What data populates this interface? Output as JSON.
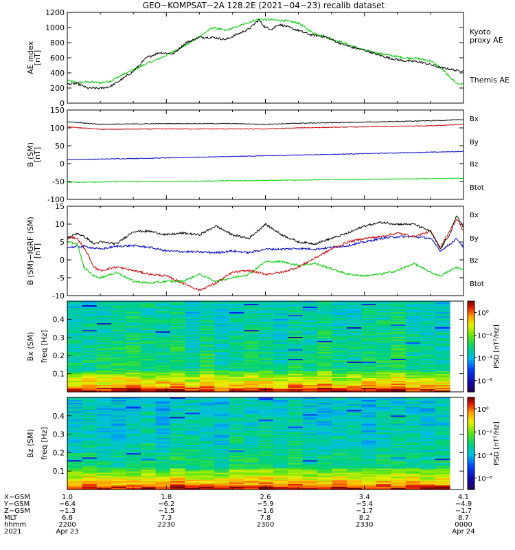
{
  "title": "GEO−KOMPSAT−2A 128.2E (2021−04−23) recalib dataset",
  "chart_data": [
    {
      "type": "line",
      "panel": "ae",
      "ylabel_lines": [
        "AE index",
        "[nT]"
      ],
      "ylim": [
        0,
        1200
      ],
      "yticks": [
        0,
        200,
        400,
        600,
        800,
        1000,
        1200
      ],
      "xlim_minutes": [
        0,
        120
      ],
      "legend_placement": "right",
      "series": [
        {
          "name": "Kyoto proxy AE",
          "label_lines": [
            "Kyoto",
            "proxy AE"
          ],
          "color": "#00cc00",
          "x": [
            0,
            3,
            6,
            10,
            13,
            16,
            20,
            24,
            28,
            32,
            36,
            40,
            44,
            48,
            52,
            55,
            58,
            62,
            66,
            70,
            74,
            78,
            82,
            86,
            90,
            94,
            98,
            102,
            106,
            110,
            113,
            116,
            118,
            120
          ],
          "y": [
            300,
            270,
            280,
            270,
            290,
            360,
            440,
            520,
            590,
            680,
            770,
            880,
            1000,
            960,
            1020,
            1070,
            1110,
            1100,
            1090,
            1060,
            940,
            880,
            820,
            760,
            700,
            660,
            630,
            600,
            590,
            560,
            470,
            340,
            260,
            250
          ]
        },
        {
          "name": "Themis AE",
          "label_lines": [
            "Themis AE"
          ],
          "color": "#000000",
          "x": [
            0,
            3,
            6,
            10,
            13,
            16,
            20,
            24,
            28,
            32,
            36,
            40,
            44,
            48,
            52,
            55,
            58,
            60,
            62,
            64,
            66,
            70,
            74,
            78,
            82,
            86,
            90,
            94,
            98,
            102,
            106,
            110,
            113,
            116,
            118,
            120
          ],
          "y": [
            250,
            260,
            200,
            195,
            220,
            300,
            420,
            600,
            670,
            650,
            800,
            870,
            870,
            840,
            920,
            980,
            1100,
            1000,
            980,
            1040,
            1020,
            960,
            900,
            880,
            800,
            740,
            700,
            640,
            590,
            560,
            550,
            510,
            470,
            450,
            430,
            430
          ]
        }
      ]
    },
    {
      "type": "line",
      "panel": "b_sm",
      "ylabel_lines": [
        "B (SM)",
        "[nT]"
      ],
      "ylim": [
        -100,
        150
      ],
      "yticks": [
        -100,
        -50,
        0,
        50,
        100,
        150
      ],
      "xlim_minutes": [
        0,
        120
      ],
      "legend_placement": "right",
      "series": [
        {
          "name": "Bx",
          "color": "#0000cc",
          "x": [
            0,
            30,
            60,
            90,
            120
          ],
          "y": [
            11,
            16,
            22,
            28,
            34
          ]
        },
        {
          "name": "By",
          "color": "#00cc00",
          "x": [
            0,
            30,
            60,
            90,
            120
          ],
          "y": [
            -52,
            -50,
            -47,
            -44,
            -41
          ]
        },
        {
          "name": "Bz",
          "color": "#cc0000",
          "x": [
            0,
            10,
            30,
            50,
            60,
            70,
            90,
            110,
            120
          ],
          "y": [
            103,
            96,
            97,
            97,
            97,
            100,
            103,
            106,
            110
          ]
        },
        {
          "name": "Btot",
          "color": "#000000",
          "x": [
            0,
            10,
            30,
            50,
            60,
            70,
            90,
            110,
            120
          ],
          "y": [
            117,
            110,
            112,
            112,
            110,
            113,
            116,
            120,
            123
          ]
        }
      ]
    },
    {
      "type": "line",
      "panel": "b_igrf",
      "ylabel_lines": [
        "B (SM)−IGRF (SM)",
        "[nT]"
      ],
      "ylim": [
        -10,
        15
      ],
      "yticks": [
        -10,
        -5,
        0,
        5,
        10,
        15
      ],
      "xlim_minutes": [
        0,
        120
      ],
      "legend_placement": "right",
      "series": [
        {
          "name": "Bx",
          "color": "#0000cc",
          "x": [
            0,
            5,
            10,
            15,
            20,
            25,
            30,
            35,
            40,
            45,
            50,
            55,
            60,
            65,
            70,
            75,
            80,
            85,
            90,
            95,
            100,
            105,
            110,
            113,
            116,
            118,
            120
          ],
          "y": [
            3.5,
            3.8,
            3.0,
            3.8,
            4.0,
            3.5,
            2.5,
            2.3,
            2.2,
            2.0,
            2.5,
            2.0,
            3.0,
            3.0,
            3.2,
            3.0,
            3.5,
            4.0,
            5.0,
            6.0,
            6.5,
            6.5,
            6.0,
            2.5,
            4.5,
            6.0,
            3.5
          ]
        },
        {
          "name": "By",
          "color": "#00cc00",
          "x": [
            0,
            3,
            5,
            8,
            10,
            15,
            20,
            25,
            30,
            35,
            40,
            45,
            50,
            55,
            60,
            65,
            70,
            75,
            80,
            85,
            90,
            95,
            100,
            105,
            110,
            113,
            116,
            118,
            120
          ],
          "y": [
            5.0,
            4.5,
            -2.0,
            -4.5,
            -5.0,
            -3.5,
            -6.0,
            -6.5,
            -6.0,
            -6.0,
            -4.0,
            -6.0,
            -5.0,
            -4.0,
            -0.5,
            -0.5,
            -1.5,
            -1.0,
            -2.5,
            -4.0,
            -4.5,
            -4.0,
            -3.0,
            -1.0,
            -3.5,
            -4.5,
            -3.0,
            -2.0,
            -3.0
          ]
        },
        {
          "name": "Bz",
          "color": "#cc0000",
          "x": [
            0,
            3,
            6,
            8,
            10,
            15,
            20,
            25,
            30,
            35,
            40,
            45,
            50,
            55,
            60,
            65,
            70,
            75,
            80,
            85,
            90,
            95,
            100,
            105,
            110,
            113,
            116,
            118,
            120
          ],
          "y": [
            6.5,
            6.0,
            2.0,
            -2.0,
            -3.0,
            -2.0,
            -3.0,
            -4.0,
            -4.5,
            -6.5,
            -8.5,
            -6.5,
            -3.5,
            -3.0,
            -4.0,
            -3.5,
            -2.0,
            0.5,
            3.0,
            5.0,
            6.0,
            6.5,
            7.5,
            6.5,
            8.0,
            3.5,
            8.5,
            11.5,
            8.0
          ]
        },
        {
          "name": "Btot",
          "color": "#000000",
          "x": [
            0,
            3,
            6,
            8,
            10,
            15,
            20,
            25,
            30,
            35,
            40,
            45,
            50,
            55,
            60,
            65,
            70,
            75,
            80,
            85,
            90,
            95,
            100,
            105,
            110,
            113,
            116,
            118,
            120
          ],
          "y": [
            6.0,
            7.5,
            6.0,
            4.5,
            5.0,
            4.5,
            8.0,
            8.0,
            7.0,
            7.5,
            7.0,
            9.5,
            7.0,
            6.0,
            10.0,
            7.0,
            5.0,
            4.5,
            6.0,
            7.5,
            9.5,
            10.5,
            10.0,
            10.0,
            8.0,
            3.0,
            7.5,
            12.5,
            9.0
          ]
        }
      ]
    },
    {
      "type": "heatmap",
      "panel": "bx_spec",
      "ylabel_lines": [
        "Bx (SM)",
        "freq [Hz]"
      ],
      "ylim": [
        0,
        0.5
      ],
      "yticks": [
        0.1,
        0.2,
        0.3,
        0.4
      ],
      "colorbar_label": "PSD [nT²/Hz]",
      "colorbar_ticks": [
        "10⁰",
        "10⁻²",
        "10⁻⁴",
        "10⁻⁶"
      ],
      "colorbar_log_range": [
        -7,
        1
      ]
    },
    {
      "type": "heatmap",
      "panel": "bz_spec",
      "ylabel_lines": [
        "Bz (SM)",
        "freq [Hz]"
      ],
      "ylim": [
        0,
        0.5
      ],
      "yticks": [
        0.1,
        0.2,
        0.3,
        0.4
      ],
      "colorbar_label": "PSD [nT²/Hz]",
      "colorbar_ticks": [
        "10⁰",
        "10⁻²",
        "10⁻⁴",
        "10⁻⁶"
      ],
      "colorbar_log_range": [
        -7,
        1
      ]
    }
  ],
  "xaxis": {
    "row_labels": [
      "X−GSM",
      "Y−GSM",
      "Z−GSM",
      "MLT",
      "hhmm",
      "2021"
    ],
    "ticks": [
      {
        "minute": 0,
        "values": [
          "1.0",
          "−6.4",
          "−1.3",
          "6.8",
          "2200",
          "Apr 23"
        ]
      },
      {
        "minute": 30,
        "values": [
          "1.8",
          "−6.2",
          "−1.5",
          "7.3",
          "2230",
          ""
        ]
      },
      {
        "minute": 60,
        "values": [
          "2.6",
          "−5.9",
          "−1.6",
          "7.8",
          "2300",
          ""
        ]
      },
      {
        "minute": 90,
        "values": [
          "3.4",
          "−5.4",
          "−1.7",
          "8.2",
          "2330",
          ""
        ]
      },
      {
        "minute": 120,
        "values": [
          "4.1",
          "−4.9",
          "−1.7",
          "8.7",
          "0000",
          "Apr 24"
        ]
      }
    ]
  }
}
